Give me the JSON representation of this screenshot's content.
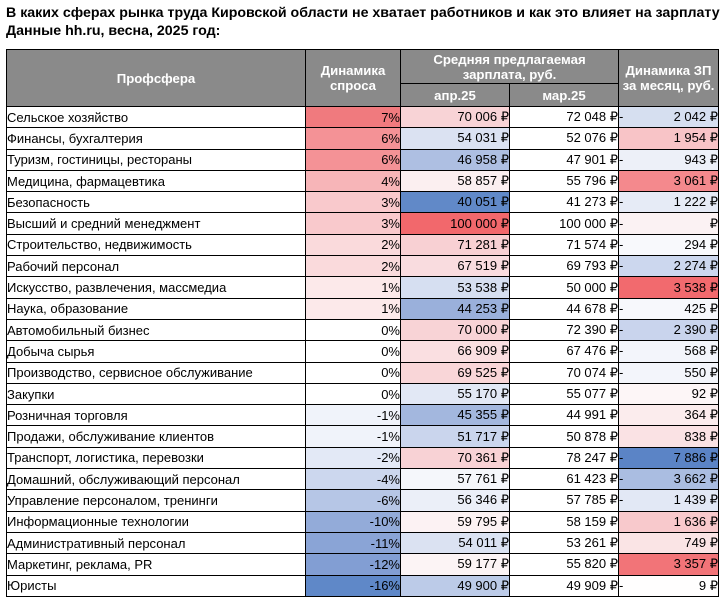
{
  "title": {
    "line1": "В каких сферах рынка труда Кировской области не хватает работников и как это влияет на зарплату?",
    "line2": "Данные hh.ru, весна, 2025 год:"
  },
  "headers": {
    "sphere": "Профсфера",
    "demand": "Динамика спроса",
    "salary": "Средняя предлагаемая зарплата, руб.",
    "apr": "апр.25",
    "mar": "мар.25",
    "change": "Динамика ЗП за месяц, руб."
  },
  "rows": [
    {
      "name": "Сельское хозяйство",
      "demand": "7%",
      "apr": "70 006 ₽",
      "mar": "72 048 ₽",
      "sign": "-",
      "change": "2 042 ₽",
      "demand_color": "#f07a7e",
      "apr_color": "#f8d3d6",
      "change_color": "#d6dff0"
    },
    {
      "name": "Финансы, бухгалтерия",
      "demand": "6%",
      "apr": "54 031 ₽",
      "mar": "52 076 ₽",
      "sign": "",
      "change": "1 954 ₽",
      "demand_color": "#f49296",
      "apr_color": "#dbe2f2",
      "change_color": "#f8c4c7"
    },
    {
      "name": "Туризм, гостиницы, рестораны",
      "demand": "6%",
      "apr": "46 958 ₽",
      "mar": "47 901 ₽",
      "sign": "-",
      "change": "943 ₽",
      "demand_color": "#f49296",
      "apr_color": "#aebfe2",
      "change_color": "#edf0f8"
    },
    {
      "name": "Медицина, фармацевтика",
      "demand": "4%",
      "apr": "58 857 ₽",
      "mar": "55 796 ₽",
      "sign": "",
      "change": "3 061 ₽",
      "demand_color": "#f7b5b8",
      "apr_color": "#fbeff0",
      "change_color": "#f4898d"
    },
    {
      "name": "Безопасность",
      "demand": "3%",
      "apr": "40 051 ₽",
      "mar": "41 273 ₽",
      "sign": "-",
      "change": "1 222 ₽",
      "demand_color": "#f9c9cc",
      "apr_color": "#6189c8",
      "change_color": "#e6ebf6"
    },
    {
      "name": "Высший и средний менеджмент",
      "demand": "3%",
      "apr": "100 000 ₽",
      "mar": "100 000 ₽",
      "sign": "-",
      "change": "₽",
      "demand_color": "#f9c9cc",
      "apr_color": "#f2686c",
      "change_color": "#fbf2f3"
    },
    {
      "name": "Строительство, недвижимость",
      "demand": "2%",
      "apr": "71 281 ₽",
      "mar": "71 574 ₽",
      "sign": "-",
      "change": "294 ₽",
      "demand_color": "#fadadc",
      "apr_color": "#f8d0d3",
      "change_color": "#f8f9fc"
    },
    {
      "name": "Рабочий персонал",
      "demand": "2%",
      "apr": "67 519 ₽",
      "mar": "69 793 ₽",
      "sign": "-",
      "change": "2 274 ₽",
      "demand_color": "#fadadc",
      "apr_color": "#f9dcdf",
      "change_color": "#ccd7ee"
    },
    {
      "name": "Искусство, развлечения, массмедиа",
      "demand": "1%",
      "apr": "53 538 ₽",
      "mar": "50 000 ₽",
      "sign": "",
      "change": "3 538 ₽",
      "demand_color": "#fce9ea",
      "apr_color": "#d6dff1",
      "change_color": "#f26a6e"
    },
    {
      "name": "Наука, образование",
      "demand": "1%",
      "apr": "44 253 ₽",
      "mar": "44 678 ₽",
      "sign": "-",
      "change": "425 ₽",
      "demand_color": "#fce9ea",
      "apr_color": "#9ab0db",
      "change_color": "#f7f8fc"
    },
    {
      "name": "Автомобильный бизнес",
      "demand": "0%",
      "apr": "70 000 ₽",
      "mar": "72 390 ₽",
      "sign": "-",
      "change": "2 390 ₽",
      "demand_color": "#ffffff",
      "apr_color": "#f8d3d6",
      "change_color": "#c9d4ed"
    },
    {
      "name": "Добыча сырья",
      "demand": "0%",
      "apr": "66 909 ₽",
      "mar": "67 476 ₽",
      "sign": "-",
      "change": "568 ₽",
      "demand_color": "#ffffff",
      "apr_color": "#fadfe1",
      "change_color": "#f3f5fb"
    },
    {
      "name": "Производство, сервисное обслуживание",
      "demand": "0%",
      "apr": "69 525 ₽",
      "mar": "70 074 ₽",
      "sign": "-",
      "change": "550 ₽",
      "demand_color": "#ffffff",
      "apr_color": "#f9d6d8",
      "change_color": "#f3f5fb"
    },
    {
      "name": "Закупки",
      "demand": "0%",
      "apr": "55 170 ₽",
      "mar": "55 077 ₽",
      "sign": "",
      "change": "92 ₽",
      "demand_color": "#ffffff",
      "apr_color": "#e2e8f5",
      "change_color": "#fdf6f7"
    },
    {
      "name": "Розничная торговля",
      "demand": "-1%",
      "apr": "45 355 ₽",
      "mar": "44 991 ₽",
      "sign": "",
      "change": "364 ₽",
      "demand_color": "#f0f3fa",
      "apr_color": "#a3b7de",
      "change_color": "#fbeced"
    },
    {
      "name": "Продажи, обслуживание клиентов",
      "demand": "-1%",
      "apr": "51 717 ₽",
      "mar": "50 878 ₽",
      "sign": "",
      "change": "838 ₽",
      "demand_color": "#f0f3fa",
      "apr_color": "#cad5ed",
      "change_color": "#fae2e4"
    },
    {
      "name": "Транспорт, логистика, перевозки",
      "demand": "-2%",
      "apr": "70 361 ₽",
      "mar": "78 247 ₽",
      "sign": "-",
      "change": "7 886 ₽",
      "demand_color": "#e3e9f6",
      "apr_color": "#f8d2d5",
      "change_color": "#5b84c6"
    },
    {
      "name": "Домашний, обслуживающий персонал",
      "demand": "-4%",
      "apr": "57 761 ₽",
      "mar": "61 423 ₽",
      "sign": "-",
      "change": "3 662 ₽",
      "demand_color": "#ccd7ee",
      "apr_color": "#f5f7fb",
      "change_color": "#aabde1"
    },
    {
      "name": "Управление персоналом, тренинги",
      "demand": "-6%",
      "apr": "56 346 ₽",
      "mar": "57 785 ₽",
      "sign": "-",
      "change": "1 439 ₽",
      "demand_color": "#b6c6e6",
      "apr_color": "#ebeff8",
      "change_color": "#e2e8f5"
    },
    {
      "name": "Информационные технологии",
      "demand": "-10%",
      "apr": "59 795 ₽",
      "mar": "58 159 ₽",
      "sign": "",
      "change": "1 636 ₽",
      "demand_color": "#93abd9",
      "apr_color": "#fcf2f3",
      "change_color": "#f8c9cc"
    },
    {
      "name": "Административный персонал",
      "demand": "-11%",
      "apr": "54 011 ₽",
      "mar": "53 261 ₽",
      "sign": "",
      "change": "749 ₽",
      "demand_color": "#8aa4d6",
      "apr_color": "#dbe2f2",
      "change_color": "#fae4e5"
    },
    {
      "name": "Маркетинг, реклама, PR",
      "demand": "-12%",
      "apr": "59 177 ₽",
      "mar": "55 820 ₽",
      "sign": "",
      "change": "3 357 ₽",
      "demand_color": "#829ed3",
      "apr_color": "#fcf4f5",
      "change_color": "#f27478"
    },
    {
      "name": "Юристы",
      "demand": "-16%",
      "apr": "49 900 ₽",
      "mar": "49 909 ₽",
      "sign": "-",
      "change": "9 ₽",
      "demand_color": "#5f88c8",
      "apr_color": "#bccbe8",
      "change_color": "#fffefe"
    }
  ]
}
